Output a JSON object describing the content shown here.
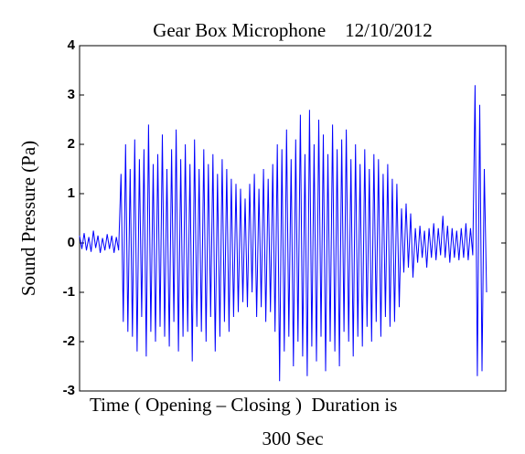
{
  "chart_data": {
    "type": "line",
    "title": "Gear Box Microphone    12/10/2012",
    "ylabel": "Sound Pressure (Pa)",
    "xlabel": [
      "Time ( Opening – Closing )  Duration is",
      "300 Sec"
    ],
    "color": "#0000ff",
    "ylim": [
      -3,
      4
    ],
    "yticks": [
      -3,
      -2,
      -1,
      0,
      1,
      2,
      3,
      4
    ],
    "values": [
      0.15,
      -0.12,
      0.2,
      -0.15,
      0.12,
      -0.18,
      0.25,
      -0.1,
      0.15,
      -0.2,
      0.1,
      -0.15,
      0.18,
      -0.12,
      0.15,
      -0.2,
      0.12,
      -0.15,
      1.4,
      -1.6,
      2.0,
      -1.8,
      1.5,
      -1.9,
      2.1,
      -2.2,
      1.7,
      -1.5,
      1.9,
      -2.3,
      2.4,
      -1.8,
      1.6,
      -2.0,
      1.8,
      -1.7,
      2.2,
      -1.9,
      1.5,
      -2.1,
      1.9,
      -1.6,
      2.3,
      -2.2,
      1.7,
      -1.9,
      2.0,
      -1.8,
      1.6,
      -2.4,
      2.1,
      -1.7,
      1.5,
      -1.8,
      1.9,
      -2.0,
      1.6,
      -1.5,
      1.8,
      -2.2,
      1.4,
      -1.9,
      1.7,
      -1.6,
      1.5,
      -1.8,
      1.3,
      -1.5,
      1.2,
      -1.4,
      1.1,
      -1.2,
      0.9,
      -1.3,
      1.2,
      -1.0,
      1.4,
      -1.5,
      1.1,
      -1.3,
      1.5,
      -1.6,
      1.3,
      -1.4,
      1.6,
      -1.8,
      2.0,
      -2.8,
      1.9,
      -2.2,
      2.3,
      -1.9,
      1.7,
      -2.5,
      2.1,
      -2.0,
      2.6,
      -2.3,
      1.8,
      -2.7,
      2.7,
      -2.1,
      2.0,
      -2.4,
      2.5,
      -1.9,
      2.2,
      -2.6,
      1.8,
      -2.0,
      2.4,
      -2.2,
      1.9,
      -2.5,
      2.1,
      -1.8,
      2.3,
      -2.0,
      1.7,
      -2.3,
      2.0,
      -1.9,
      1.6,
      -2.1,
      1.9,
      -1.7,
      1.5,
      -2.0,
      1.8,
      -1.6,
      1.7,
      -1.9,
      1.4,
      -1.5,
      1.6,
      -1.7,
      1.3,
      -1.6,
      1.2,
      -1.3,
      0.7,
      -0.6,
      0.8,
      -0.5,
      0.6,
      -0.7,
      0.3,
      -0.4,
      0.35,
      -0.3,
      0.25,
      -0.5,
      0.3,
      -0.3,
      0.4,
      -0.35,
      0.3,
      -0.25,
      0.55,
      -0.3,
      0.35,
      -0.4,
      0.3,
      -0.3,
      0.25,
      -0.35,
      0.3,
      -0.3,
      0.4,
      -0.35,
      0.3,
      -0.25,
      3.2,
      -2.7,
      2.8,
      -2.6,
      1.5,
      -1.0
    ]
  }
}
